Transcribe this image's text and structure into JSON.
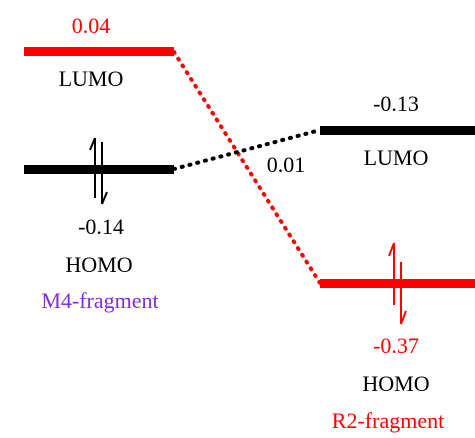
{
  "colors": {
    "red": "#ff0000",
    "black": "#000000",
    "purple": "#7f2fd6"
  },
  "left": {
    "lumo": {
      "energy": "0.04",
      "label": "LUMO"
    },
    "homo": {
      "energy": "-0.14",
      "label": "HOMO"
    },
    "fragment": "M4-fragment"
  },
  "right": {
    "lumo": {
      "energy": "-0.13",
      "label": "LUMO"
    },
    "homo": {
      "energy": "-0.37",
      "label": "HOMO"
    },
    "fragment": "R2-fragment"
  },
  "gap_label": "0.01"
}
